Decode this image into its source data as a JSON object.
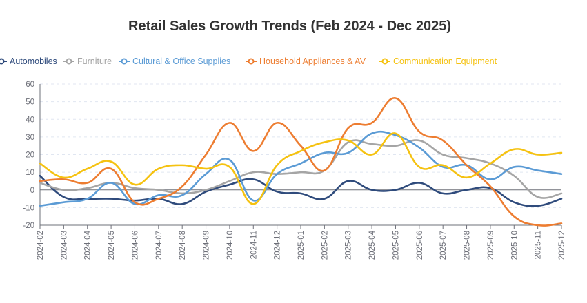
{
  "chart_data": {
    "type": "line",
    "title": "Retail Sales Growth Trends (Feb 2024 - Dec 2025)",
    "xlabel": "",
    "ylabel": "",
    "ylim": [
      -20,
      60
    ],
    "yticks": [
      -20,
      -10,
      0,
      10,
      20,
      30,
      40,
      50,
      60
    ],
    "grid": true,
    "legend_position": "top",
    "categories": [
      "2024-02",
      "2024-03",
      "2024-04",
      "2024-05",
      "2024-06",
      "2024-07",
      "2024-08",
      "2024-09",
      "2024-10",
      "2024-11",
      "2024-12",
      "2025-01",
      "2025-02",
      "2025-03",
      "2025-04",
      "2025-05",
      "2025-06",
      "2025-07",
      "2025-08",
      "2025-09",
      "2025-10",
      "2025-11",
      "2025-12"
    ],
    "series": [
      {
        "name": "Automobiles",
        "color": "#2f4b7c",
        "values": [
          8,
          -4,
          -5,
          -5,
          -6,
          -5,
          -8,
          -1,
          3,
          6,
          -1,
          -2,
          -5,
          5,
          0,
          0,
          4,
          -2,
          0,
          1,
          -7,
          -9,
          -5
        ]
      },
      {
        "name": "Furniture",
        "color": "#a5a5a5",
        "values": [
          4,
          0,
          1,
          4,
          1,
          0,
          -2,
          0,
          5,
          10,
          9,
          10,
          11,
          27,
          26,
          25,
          28,
          20,
          18,
          15,
          8,
          -4,
          -2
        ]
      },
      {
        "name": "Cultural & Office Supplies",
        "color": "#5b9bd5",
        "values": [
          -9,
          -7,
          -5,
          4,
          -8,
          -3,
          -3,
          9,
          17,
          -6,
          9,
          15,
          21,
          21,
          32,
          31,
          24,
          13,
          14,
          6,
          13,
          11,
          9
        ]
      },
      {
        "name": "Household Appliances & AV",
        "color": "#ed7d31",
        "values": [
          5,
          6,
          4,
          12,
          -7,
          -5,
          2,
          20,
          38,
          22,
          38,
          25,
          11,
          35,
          38,
          52,
          33,
          28,
          14,
          2,
          -15,
          -20,
          -19
        ]
      },
      {
        "name": "Communication Equipment",
        "color": "#f5c211",
        "values": [
          15,
          7,
          12,
          16,
          3,
          12,
          14,
          12,
          13,
          -8,
          14,
          22,
          27,
          28,
          20,
          32,
          13,
          14,
          7,
          15,
          23,
          20,
          21
        ]
      }
    ]
  }
}
